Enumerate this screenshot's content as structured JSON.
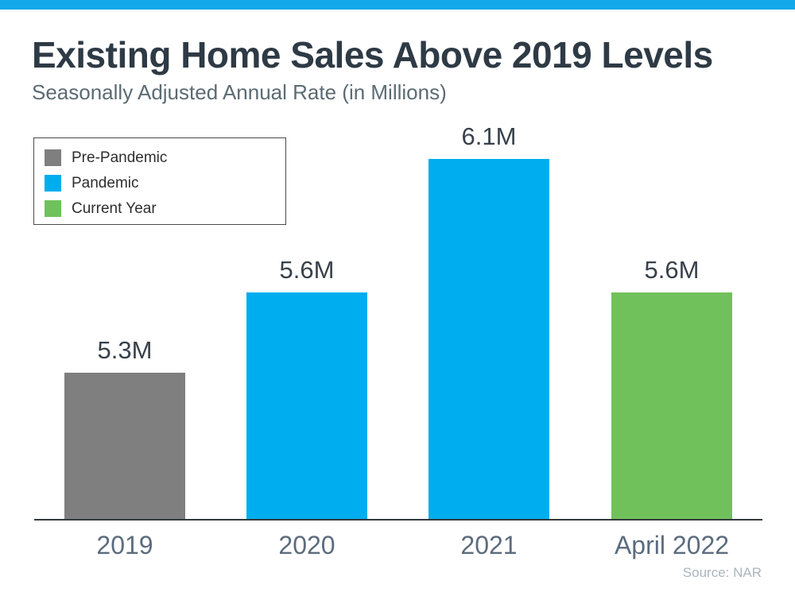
{
  "page": {
    "top_bar_color": "#12A8E9",
    "title": "Existing Home Sales Above 2019 Levels",
    "subtitle": "Seasonally Adjusted Annual Rate (in Millions)",
    "source": "Source: NAR"
  },
  "legend": {
    "position": "top-left",
    "items": [
      {
        "label": "Pre-Pandemic",
        "color": "#7F7F7F"
      },
      {
        "label": "Pandemic",
        "color": "#00AEEF"
      },
      {
        "label": "Current Year",
        "color": "#70C15B"
      }
    ]
  },
  "chart_data": {
    "type": "bar",
    "title": "Existing Home Sales Above 2019 Levels",
    "subtitle": "Seasonally Adjusted Annual Rate (in Millions)",
    "categories": [
      "2019",
      "2020",
      "2021",
      "April 2022"
    ],
    "values": [
      5.3,
      5.6,
      6.1,
      5.6
    ],
    "value_labels": [
      "5.3M",
      "5.6M",
      "6.1M",
      "5.6M"
    ],
    "series": [
      {
        "name": "Pre-Pandemic",
        "applies_to": [
          "2019"
        ],
        "color": "#7F7F7F"
      },
      {
        "name": "Pandemic",
        "applies_to": [
          "2020",
          "2021"
        ],
        "color": "#00AEEF"
      },
      {
        "name": "Current Year",
        "applies_to": [
          "April 2022"
        ],
        "color": "#70C15B"
      }
    ],
    "bar_colors": [
      "#7F7F7F",
      "#00AEEF",
      "#00AEEF",
      "#70C15B"
    ],
    "xlabel": "",
    "ylabel": "",
    "baseline_value": 4.75,
    "ylim": [
      4.75,
      6.2
    ],
    "grid": false,
    "y_axis_ticks": false,
    "legend_position": "top-left",
    "source": "Source: NAR"
  }
}
